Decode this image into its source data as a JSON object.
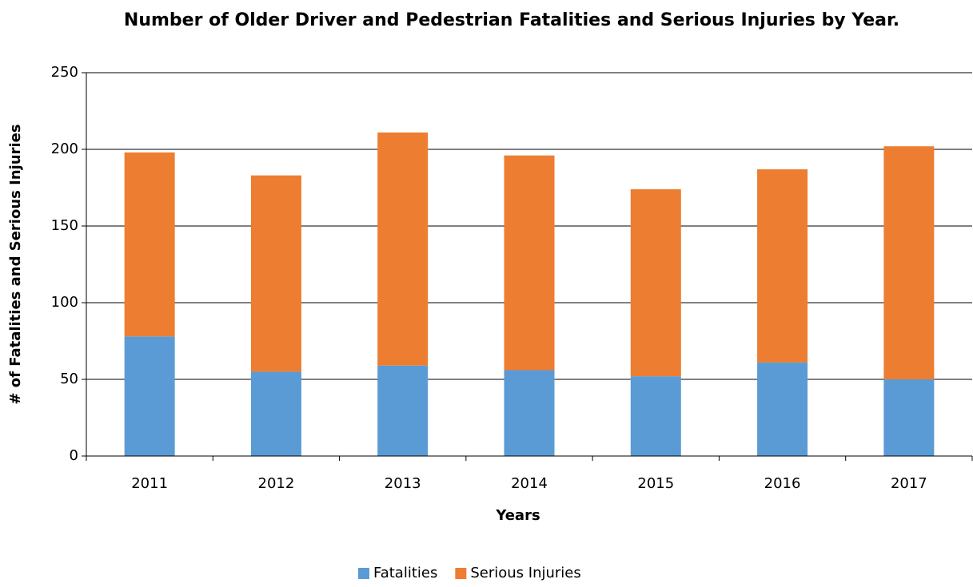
{
  "chart_data": {
    "type": "stacked_bar",
    "title": "Number of Older Driver and Pedestrian Fatalities and Serious Injuries by Year.",
    "x_label": "Years",
    "y_label": "# of Fatalities and Serious Injuries",
    "categories": [
      "2011",
      "2012",
      "2013",
      "2014",
      "2015",
      "2016",
      "2017"
    ],
    "series": [
      {
        "name": "Fatalities",
        "color": "#5b9bd5",
        "values": [
          78,
          55,
          59,
          56,
          52,
          61,
          50
        ]
      },
      {
        "name": "Serious Injuries",
        "color": "#ed7d31",
        "values": [
          120,
          128,
          152,
          140,
          122,
          126,
          152
        ]
      }
    ],
    "ylim": [
      0,
      250
    ],
    "yticks": [
      0,
      50,
      100,
      150,
      200,
      250
    ],
    "grid": true,
    "legend": "bottom"
  }
}
